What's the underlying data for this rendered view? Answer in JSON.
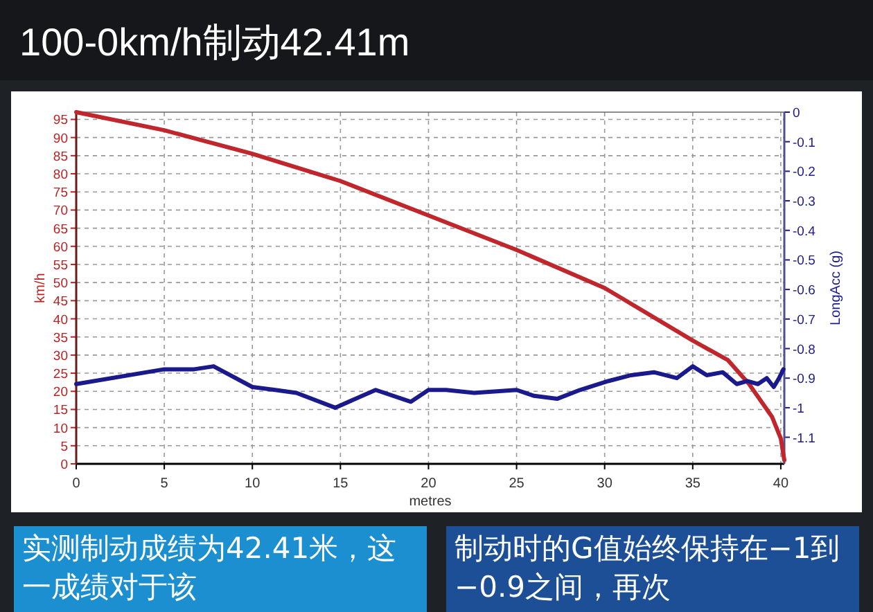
{
  "chart_data": {
    "type": "line",
    "title": "100-0km/h制动42.41m",
    "xlabel": "metres",
    "ylabel": "km/h",
    "y2label": "LongAcc (g)",
    "xlim": [
      0,
      40.2
    ],
    "xticks": [
      0,
      5,
      10,
      15,
      20,
      25,
      30,
      35,
      40
    ],
    "ylim": [
      0,
      97
    ],
    "yticks": [
      0,
      5,
      10,
      15,
      20,
      25,
      30,
      35,
      40,
      45,
      50,
      55,
      60,
      65,
      70,
      75,
      80,
      85,
      90,
      95
    ],
    "y2lim": [
      -1.19,
      0
    ],
    "y2ticks": [
      0,
      -0.1,
      -0.2,
      -0.3,
      -0.4,
      -0.5,
      -0.6,
      -0.7,
      -0.8,
      -0.9,
      -1,
      -1.1
    ],
    "grid": true,
    "marker": "none",
    "line_style": "solid",
    "series": [
      {
        "color": "#c0272d",
        "axis": "y",
        "x": [
          0,
          5,
          10,
          15,
          20,
          25,
          30,
          35,
          37,
          38.2,
          39.5,
          40,
          40.2
        ],
        "values": [
          97,
          92,
          85.5,
          78,
          68.5,
          59,
          48.5,
          34,
          28.6,
          22,
          13,
          7,
          1
        ]
      },
      {
        "color": "#1a1a8c",
        "axis": "y2",
        "x": [
          0,
          5,
          6.7,
          7.8,
          10,
          11.3,
          12.5,
          14.7,
          17,
          19,
          20,
          21,
          22.6,
          25,
          26,
          27.3,
          28.6,
          30.2,
          31.5,
          32.8,
          34.1,
          35,
          35.8,
          36.7,
          37.5,
          38.1,
          38.7,
          39.2,
          39.6,
          39.9,
          40.15
        ],
        "values": [
          -0.92,
          -0.87,
          -0.87,
          -0.86,
          -0.93,
          -0.94,
          -0.95,
          -1.0,
          -0.94,
          -0.98,
          -0.94,
          -0.94,
          -0.95,
          -0.94,
          -0.96,
          -0.97,
          -0.94,
          -0.91,
          -0.89,
          -0.88,
          -0.9,
          -0.86,
          -0.89,
          -0.88,
          -0.92,
          -0.91,
          -0.92,
          -0.9,
          -0.93,
          -0.9,
          -0.87
        ]
      }
    ],
    "annotations": [
      "实测制动成绩为42.41米，这一成绩对于该",
      "制动时的G值始终保持在−1到−0.9之间，再次"
    ]
  }
}
